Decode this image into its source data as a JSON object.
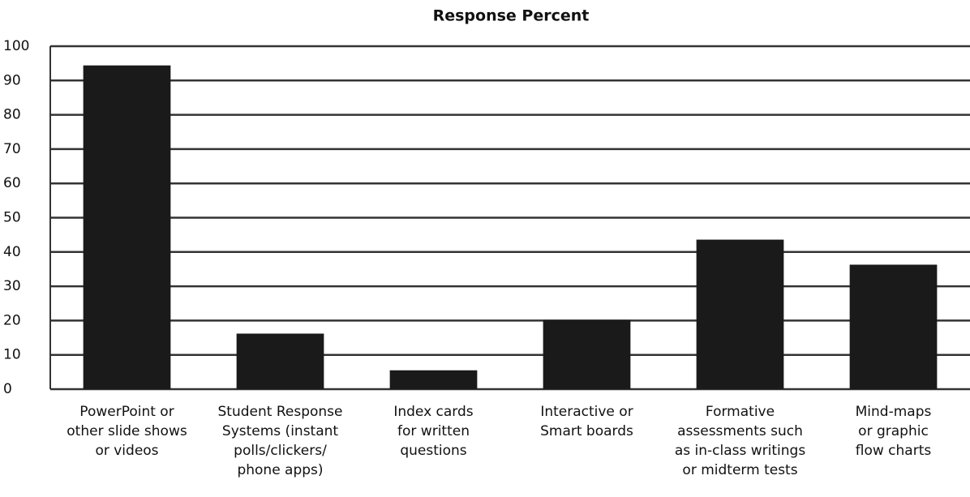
{
  "chart_data": {
    "type": "bar",
    "title": "Response Percent",
    "categories": [
      [
        "PowerPoint or",
        "other slide shows",
        "or videos"
      ],
      [
        "Student Response",
        "Systems (instant",
        "polls/clickers/",
        "phone apps)"
      ],
      [
        "Index cards",
        "for written",
        "questions"
      ],
      [
        "Interactive or",
        "Smart boards"
      ],
      [
        "Formative",
        "assessments such",
        "as in-class writings",
        "or midterm tests"
      ],
      [
        "Mind-maps",
        "or graphic",
        "flow charts"
      ]
    ],
    "values": [
      94.4,
      16.2,
      5.5,
      20.2,
      43.6,
      36.3
    ],
    "color": "#1a1a1a",
    "ylim": [
      0,
      100
    ],
    "yticks": [
      0,
      10,
      20,
      30,
      40,
      50,
      60,
      70,
      80,
      90,
      100
    ],
    "grid": true
  }
}
